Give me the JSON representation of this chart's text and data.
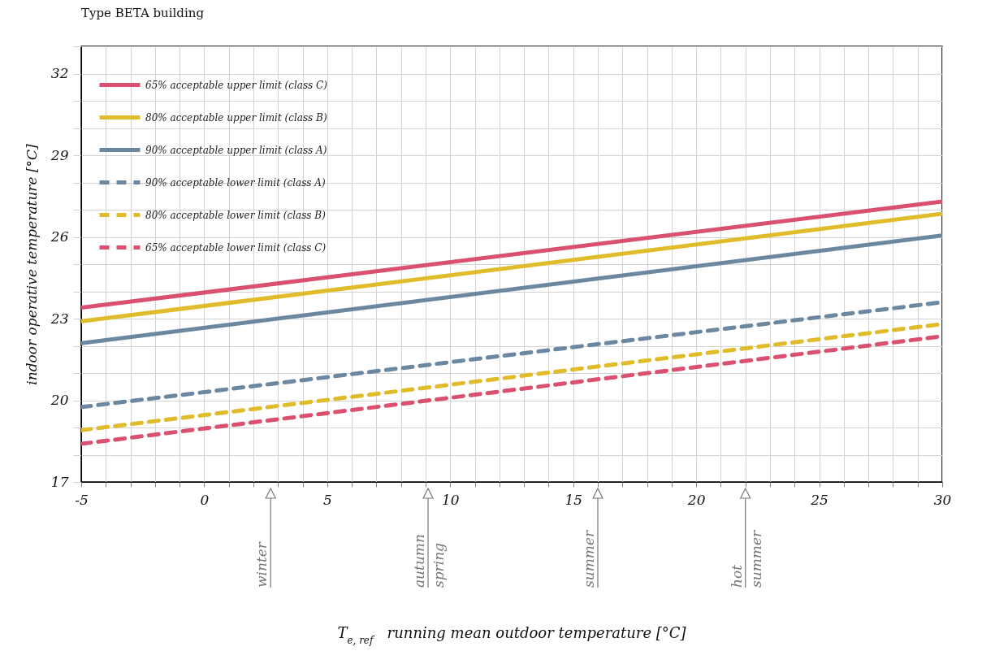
{
  "chart_data": {
    "type": "line",
    "title": "Type BETA building",
    "xlabel": "T$_{e, ref}$   running mean outdoor temperature [°C]",
    "ylabel": "indoor operative temperature [°C]",
    "x": [
      -5,
      30
    ],
    "series": [
      {
        "name": "65% acceptable upper limit (class C)",
        "color": "#d9516e",
        "line_style": "solid",
        "values": [
          23.4,
          27.3
        ]
      },
      {
        "name": "80% acceptable upper limit (class B)",
        "color": "#e0bb2a",
        "line_style": "solid",
        "values": [
          22.9,
          26.85
        ]
      },
      {
        "name": "90% acceptable upper limit (class A)",
        "color": "#6b88a0",
        "line_style": "solid",
        "values": [
          22.1,
          26.05
        ]
      },
      {
        "name": "90% acceptable lower limit (class A)",
        "color": "#6b88a0",
        "line_style": "dashed",
        "values": [
          19.75,
          23.6
        ]
      },
      {
        "name": "80% acceptable lower limit (class B)",
        "color": "#e0bb2a",
        "line_style": "dashed",
        "values": [
          18.9,
          22.8
        ]
      },
      {
        "name": "65% acceptable lower limit (class C)",
        "color": "#d9516e",
        "line_style": "dashed",
        "values": [
          18.4,
          22.35
        ]
      }
    ],
    "xlim": [
      -5,
      30
    ],
    "xticks": [
      -5,
      {
        "value": -4,
        "label": null
      },
      {
        "value": -3,
        "label": null
      },
      {
        "value": -2,
        "label": null
      },
      {
        "value": -1,
        "label": null
      },
      0,
      {
        "value": 1,
        "label": null
      },
      {
        "value": 2,
        "label": null
      },
      {
        "value": 3,
        "label": null
      },
      {
        "value": 4,
        "label": null
      },
      5,
      {
        "value": 6,
        "label": null
      },
      {
        "value": 7,
        "label": null
      },
      {
        "value": 8,
        "label": null
      },
      {
        "value": 9,
        "label": null
      },
      10,
      {
        "value": 11,
        "label": null
      },
      {
        "value": 12,
        "label": null
      },
      {
        "value": 13,
        "label": null
      },
      {
        "value": 14,
        "label": null
      },
      15,
      {
        "value": 16,
        "label": null
      },
      {
        "value": 17,
        "label": null
      },
      {
        "value": 18,
        "label": null
      },
      {
        "value": 19,
        "label": null
      },
      20,
      {
        "value": 21,
        "label": null
      },
      {
        "value": 22,
        "label": null
      },
      {
        "value": 23,
        "label": null
      },
      {
        "value": 24,
        "label": null
      },
      25,
      {
        "value": 26,
        "label": null
      },
      {
        "value": 27,
        "label": null
      },
      {
        "value": 28,
        "label": null
      },
      {
        "value": 29,
        "label": null
      },
      30
    ],
    "ylim": [
      17,
      33
    ],
    "yticks": [
      17,
      {
        "value": 18,
        "label": null
      },
      {
        "value": 19,
        "label": null
      },
      20,
      {
        "value": 21,
        "label": null
      },
      {
        "value": 22,
        "label": null
      },
      23,
      {
        "value": 24,
        "label": null
      },
      {
        "value": 25,
        "label": null
      },
      26,
      {
        "value": 27,
        "label": null
      },
      {
        "value": 28,
        "label": null
      },
      29,
      {
        "value": 30,
        "label": null
      },
      {
        "value": 31,
        "label": null
      },
      32,
      {
        "value": 33,
        "label": null
      }
    ],
    "grid": true,
    "legend": "top left",
    "marker": "none",
    "ref_lines": [
      {
        "axis": "x",
        "value": 2.7,
        "label": "winter"
      },
      {
        "axis": "x",
        "value": 9.1,
        "label": "autumn spring"
      },
      {
        "axis": "x",
        "value": 16,
        "label": "summer"
      },
      {
        "axis": "x",
        "value": 22,
        "label": "hot summer"
      }
    ]
  }
}
